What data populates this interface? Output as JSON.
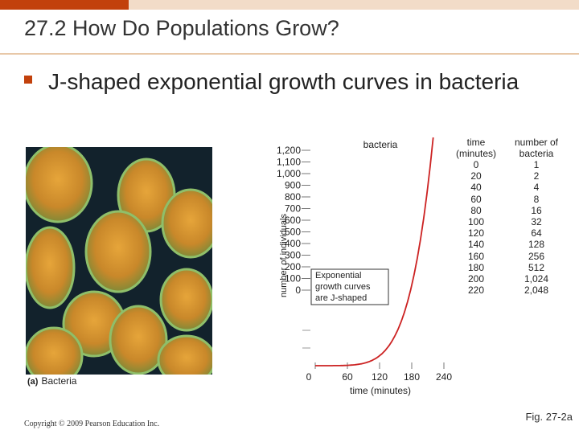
{
  "slide": {
    "title": "27.2 How Do Populations Grow?",
    "bullet": "J-shaped exponential growth curves in bacteria",
    "photo_caption_letter": "(a)",
    "photo_caption": "Bacteria",
    "copyright": "Copyright © 2009 Pearson Education Inc.",
    "figure_label": "Fig. 27-2a",
    "accent_color": "#c2410c",
    "curve_color": "#cc2222"
  },
  "table": {
    "headers": [
      "time (minutes)",
      "number of bacteria"
    ],
    "header_lines": [
      [
        "time",
        "number of"
      ],
      [
        "(minutes)",
        "bacteria"
      ]
    ],
    "rows": [
      [
        "0",
        "1"
      ],
      [
        "20",
        "2"
      ],
      [
        "40",
        "4"
      ],
      [
        "60",
        "8"
      ],
      [
        "80",
        "16"
      ],
      [
        "100",
        "32"
      ],
      [
        "120",
        "64"
      ],
      [
        "140",
        "128"
      ],
      [
        "160",
        "256"
      ],
      [
        "180",
        "512"
      ],
      [
        "200",
        "1,024"
      ],
      [
        "220",
        "2,048"
      ]
    ]
  },
  "chart_data": {
    "type": "line",
    "title": "bacteria",
    "xlabel": "time (minutes)",
    "ylabel": "number of individuals",
    "xlim": [
      0,
      240
    ],
    "x_ticks": [
      "0",
      "60",
      "120",
      "180",
      "240"
    ],
    "y_ticks": [
      "0",
      "100",
      "200",
      "300",
      "400",
      "500",
      "600",
      "700",
      "800",
      "900",
      "1,000",
      "1,100",
      "1,200"
    ],
    "annotation": "Exponential growth curves are J-shaped",
    "series": [
      {
        "name": "bacteria",
        "x": [
          0,
          20,
          40,
          60,
          80,
          100,
          120,
          140,
          160,
          180,
          200,
          220
        ],
        "y": [
          1,
          2,
          4,
          8,
          16,
          32,
          64,
          128,
          256,
          512,
          1024,
          2048
        ]
      }
    ]
  }
}
